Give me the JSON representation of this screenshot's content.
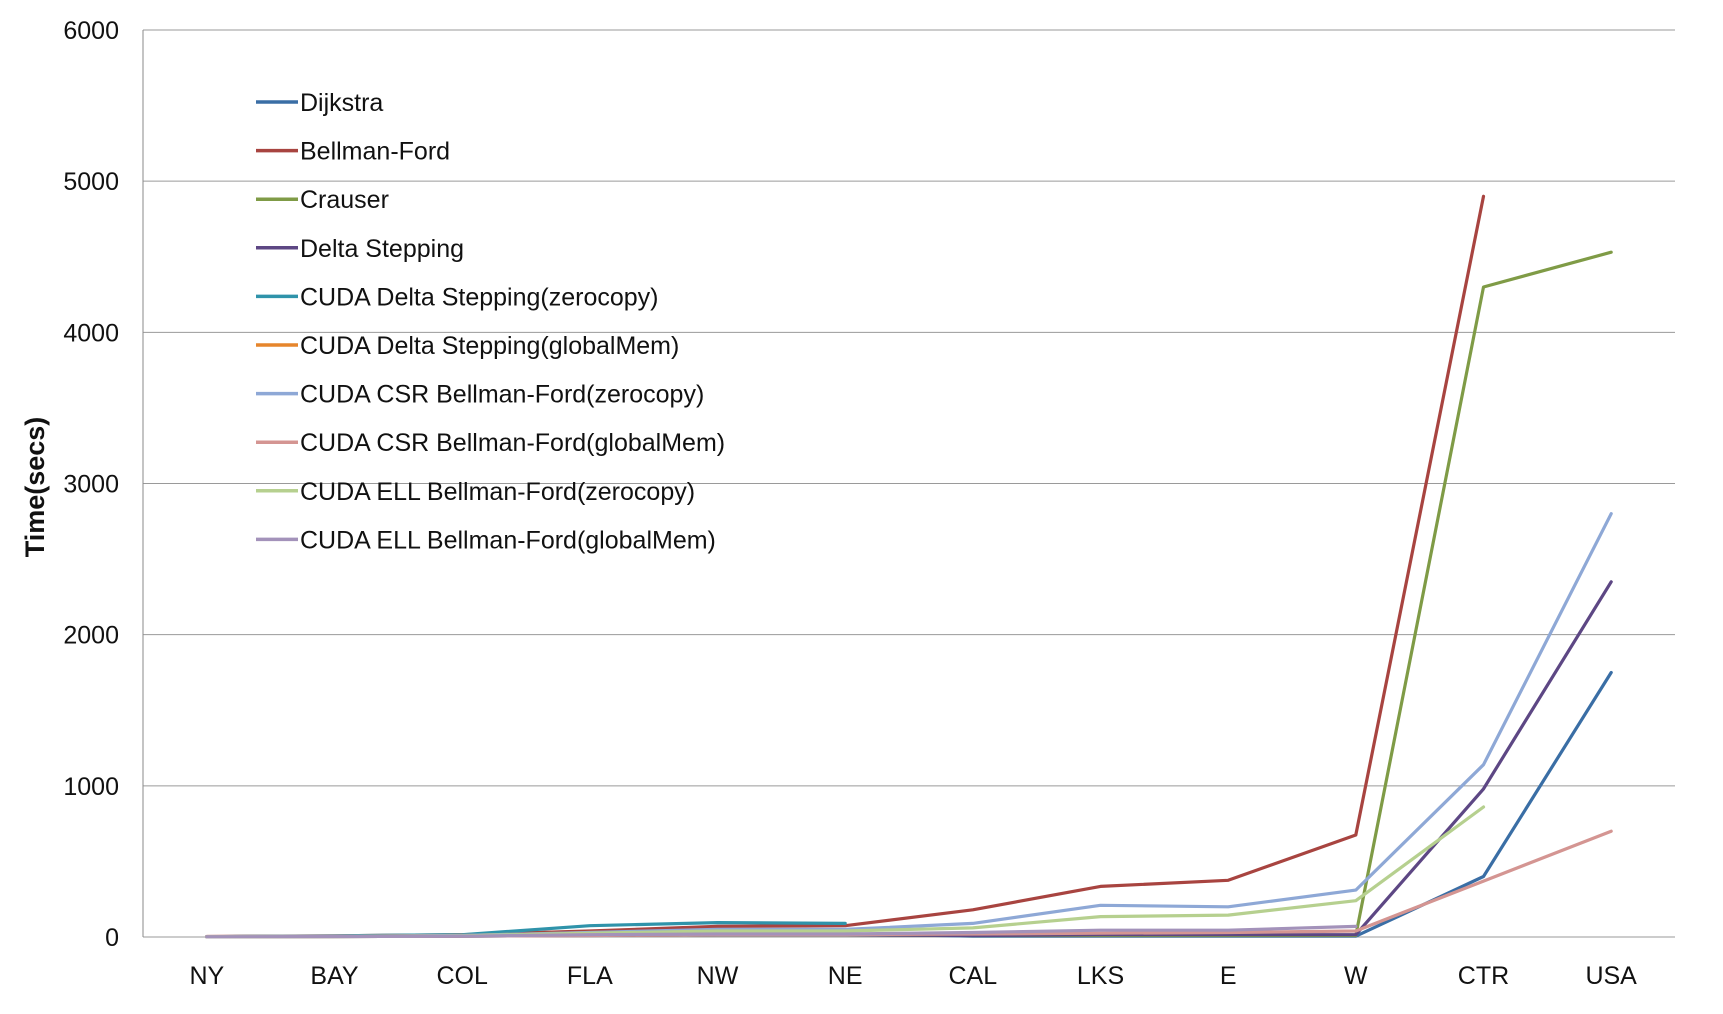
{
  "chart_data": {
    "type": "line",
    "title": "",
    "xlabel": "",
    "ylabel": "Time(secs)",
    "ylim": [
      0,
      6000
    ],
    "yticks": [
      0,
      1000,
      2000,
      3000,
      4000,
      5000,
      6000
    ],
    "grid": true,
    "legend_position": "top-left",
    "categories": [
      "NY",
      "BAY",
      "COL",
      "FLA",
      "NW",
      "NE",
      "CAL",
      "LKS",
      "E",
      "W",
      "CTR",
      "USA"
    ],
    "series": [
      {
        "name": "Dijkstra",
        "color": "#3a6ea5",
        "values": [
          2,
          5,
          8,
          15,
          20,
          22,
          5,
          5,
          5,
          5,
          400,
          1750
        ]
      },
      {
        "name": "Bellman-Ford",
        "color": "#a84440",
        "values": [
          3,
          8,
          15,
          40,
          70,
          75,
          180,
          335,
          375,
          675,
          4900,
          null
        ]
      },
      {
        "name": "Crauser",
        "color": "#7f9b46",
        "values": [
          1,
          3,
          5,
          10,
          15,
          15,
          10,
          10,
          10,
          10,
          4300,
          4530
        ]
      },
      {
        "name": "Delta Stepping",
        "color": "#5d4784",
        "values": [
          1,
          3,
          5,
          10,
          15,
          15,
          10,
          15,
          15,
          15,
          980,
          2350
        ]
      },
      {
        "name": "CUDA Delta Stepping(zerocopy)",
        "color": "#2f93aa",
        "values": [
          2,
          8,
          15,
          75,
          95,
          90,
          null,
          null,
          null,
          null,
          null,
          null
        ]
      },
      {
        "name": "CUDA Delta Stepping(globalMem)",
        "color": "#e6852c",
        "values": [
          2,
          5,
          10,
          30,
          40,
          40,
          null,
          null,
          null,
          null,
          null,
          null
        ]
      },
      {
        "name": "CUDA CSR Bellman-Ford(zerocopy)",
        "color": "#8ea8d6",
        "values": [
          2,
          5,
          10,
          30,
          50,
          50,
          90,
          210,
          200,
          310,
          1140,
          2800
        ]
      },
      {
        "name": "CUDA CSR Bellman-Ford(globalMem)",
        "color": "#d49592",
        "values": [
          1,
          3,
          5,
          10,
          15,
          15,
          20,
          25,
          30,
          40,
          370,
          700
        ]
      },
      {
        "name": "CUDA ELL Bellman-Ford(zerocopy)",
        "color": "#b6d08f",
        "values": [
          1,
          3,
          8,
          25,
          40,
          40,
          60,
          135,
          145,
          240,
          860,
          null
        ]
      },
      {
        "name": "CUDA ELL Bellman-Ford(globalMem)",
        "color": "#a392ba",
        "values": [
          1,
          3,
          5,
          15,
          20,
          20,
          30,
          45,
          45,
          70,
          null,
          null
        ]
      }
    ]
  }
}
